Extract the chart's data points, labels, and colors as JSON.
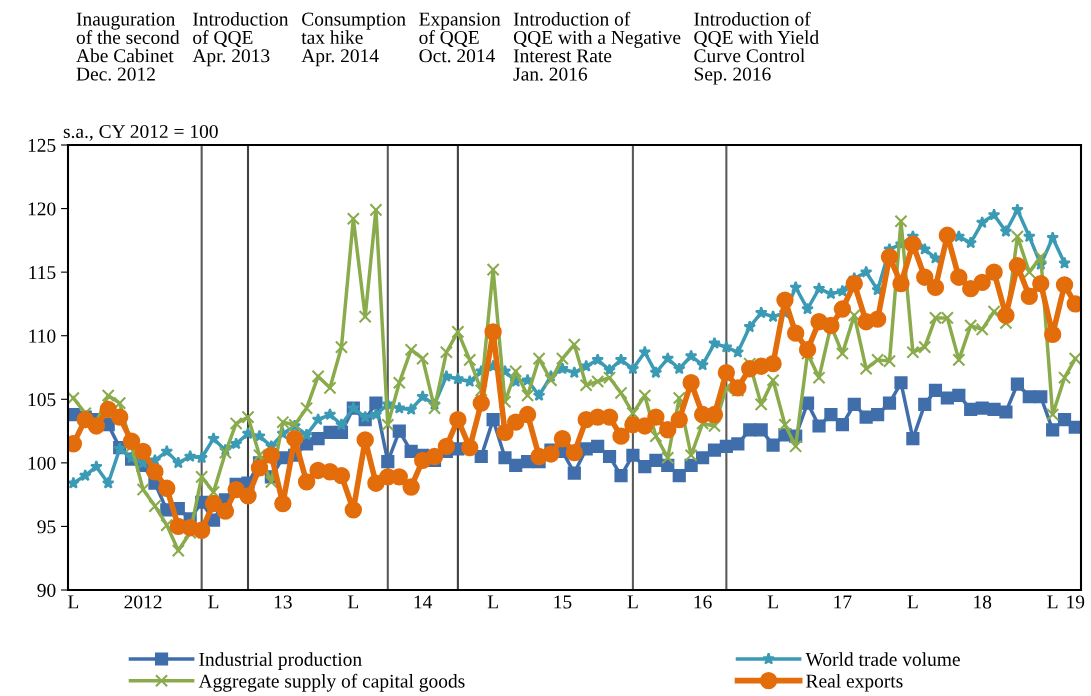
{
  "chart_data": {
    "type": "line",
    "ylabel": "s.a., CY 2012 = 100",
    "annotations": [
      "Inauguration\nof the second\nAbe Cabinet\nDec. 2012",
      "Introduction\nof QQE\nApr. 2013",
      "Consumption\ntax hike\nApr. 2014",
      "Expansion\nof QQE\nOct. 2014",
      "Introduction of\nQQE with a Negative\nInterest Rate\nJan. 2016",
      "Introduction of\nQQE with Yield\nCurve Control\nSep. 2016"
    ],
    "x": [
      "2012-01",
      "2012-02",
      "2012-03",
      "2012-04",
      "2012-05",
      "2012-06",
      "2012-07",
      "2012-08",
      "2012-09",
      "2012-10",
      "2012-11",
      "2012-12",
      "2013-01",
      "2013-02",
      "2013-03",
      "2013-04",
      "2013-05",
      "2013-06",
      "2013-07",
      "2013-08",
      "2013-09",
      "2013-10",
      "2013-11",
      "2013-12",
      "2014-01",
      "2014-02",
      "2014-03",
      "2014-04",
      "2014-05",
      "2014-06",
      "2014-07",
      "2014-08",
      "2014-09",
      "2014-10",
      "2014-11",
      "2014-12",
      "2015-01",
      "2015-02",
      "2015-03",
      "2015-04",
      "2015-05",
      "2015-06",
      "2015-07",
      "2015-08",
      "2015-09",
      "2015-10",
      "2015-11",
      "2015-12",
      "2016-01",
      "2016-02",
      "2016-03",
      "2016-04",
      "2016-05",
      "2016-06",
      "2016-07",
      "2016-08",
      "2016-09",
      "2016-10",
      "2016-11",
      "2016-12",
      "2017-01",
      "2017-02",
      "2017-03",
      "2017-04",
      "2017-05",
      "2017-06",
      "2017-07",
      "2017-08",
      "2017-09",
      "2017-10",
      "2017-11",
      "2017-12",
      "2018-01",
      "2018-02",
      "2018-03",
      "2018-04",
      "2018-05",
      "2018-06",
      "2018-07",
      "2018-08",
      "2018-09",
      "2018-10",
      "2018-11",
      "2018-12",
      "2019-01",
      "2019-02",
      "2019-03"
    ],
    "series": [
      {
        "name": "Industrial production",
        "color": "#3f6eab",
        "marker": "square",
        "values": [
          103.8,
          103.6,
          103.4,
          103.0,
          101.2,
          100.3,
          99.8,
          98.4,
          96.3,
          96.4,
          95.6,
          96.9,
          95.5,
          97.1,
          98.3,
          98.4,
          100.0,
          98.9,
          100.4,
          100.6,
          101.5,
          101.9,
          102.4,
          102.4,
          104.3,
          103.4,
          104.7,
          100.1,
          102.5,
          100.9,
          100.6,
          100.2,
          100.9,
          101.1,
          null,
          100.5,
          103.4,
          100.4,
          99.8,
          100.1,
          100.1,
          101.0,
          100.9,
          99.2,
          101.1,
          101.3,
          100.5,
          99.0,
          100.6,
          99.7,
          100.2,
          99.8,
          99.0,
          99.8,
          100.4,
          101.0,
          101.3,
          101.5,
          102.6,
          102.6,
          101.4,
          102.2,
          102.1,
          104.7,
          102.9,
          103.8,
          103.0,
          104.6,
          103.6,
          103.8,
          104.7,
          106.3,
          101.9,
          104.6,
          105.7,
          105.1,
          105.3,
          104.2,
          104.3,
          104.2,
          104.0,
          106.2,
          105.2,
          105.2,
          102.6,
          103.4,
          102.8
        ]
      },
      {
        "name": "World trade volume",
        "color": "#3b9ab4",
        "marker": "star",
        "values": [
          98.4,
          99.0,
          99.7,
          98.4,
          101.1,
          100.4,
          100.0,
          100.2,
          100.9,
          100.0,
          100.5,
          100.4,
          101.9,
          101.0,
          101.5,
          102.3,
          102.1,
          101.3,
          102.3,
          102.9,
          102.2,
          103.4,
          103.8,
          103.0,
          104.3,
          103.6,
          103.8,
          104.6,
          104.3,
          104.2,
          105.2,
          104.6,
          106.8,
          106.6,
          106.4,
          107.2,
          107.6,
          107.2,
          106.4,
          106.5,
          105.3,
          106.8,
          107.4,
          107.1,
          107.6,
          108.1,
          107.3,
          108.1,
          107.4,
          108.7,
          107.1,
          108.2,
          107.4,
          108.4,
          107.7,
          109.4,
          109.1,
          108.7,
          110.7,
          111.8,
          111.5,
          111.8,
          113.8,
          112.1,
          113.7,
          113.3,
          113.5,
          114.5,
          115.0,
          113.6,
          116.8,
          117.2,
          117.8,
          116.8,
          116.1,
          null,
          117.8,
          117.3,
          118.9,
          119.5,
          118.2,
          119.9,
          117.8,
          115.6,
          117.7,
          115.7,
          null
        ]
      },
      {
        "name": "Aggregate supply of capital goods",
        "color": "#8aab4c",
        "marker": "cross",
        "values": [
          105.1,
          103.9,
          103.2,
          105.3,
          104.7,
          101.3,
          97.9,
          96.6,
          95.1,
          93.1,
          94.5,
          98.9,
          97.7,
          100.8,
          103.1,
          103.6,
          100.6,
          98.5,
          103.2,
          103.0,
          104.3,
          106.8,
          105.9,
          109.1,
          119.2,
          111.5,
          119.9,
          103.0,
          106.3,
          108.9,
          108.2,
          104.3,
          108.7,
          110.3,
          108.1,
          105.7,
          115.2,
          104.8,
          107.2,
          105.3,
          108.2,
          106.5,
          108.2,
          109.3,
          106.1,
          106.4,
          106.7,
          105.5,
          103.9,
          105.3,
          102.1,
          100.4,
          105.1,
          100.6,
          103.1,
          102.9,
          105.9,
          105.7,
          107.8,
          104.6,
          106.5,
          103.0,
          101.3,
          108.6,
          106.7,
          110.8,
          108.6,
          111.6,
          107.4,
          108.1,
          108.0,
          119.0,
          108.7,
          109.1,
          111.4,
          111.4,
          108.1,
          110.8,
          110.5,
          111.9,
          111.0,
          117.8,
          115.0,
          116.2,
          103.8,
          106.7,
          108.2
        ]
      },
      {
        "name": "Real exports",
        "color": "#e36c0b",
        "marker": "circle",
        "values": [
          101.5,
          103.4,
          102.9,
          104.2,
          103.6,
          101.7,
          100.9,
          99.3,
          98.0,
          95.0,
          94.9,
          94.7,
          96.8,
          96.2,
          97.9,
          97.4,
          99.6,
          100.6,
          96.8,
          101.9,
          98.5,
          99.4,
          99.3,
          99.0,
          96.3,
          101.8,
          98.4,
          98.9,
          98.9,
          98.1,
          100.2,
          100.5,
          101.3,
          103.4,
          101.2,
          104.7,
          110.3,
          102.4,
          103.2,
          103.8,
          100.5,
          100.7,
          101.9,
          100.8,
          103.4,
          103.6,
          103.6,
          102.1,
          103.0,
          102.9,
          103.6,
          102.6,
          103.4,
          106.3,
          103.8,
          103.8,
          107.1,
          105.9,
          107.4,
          107.6,
          107.8,
          112.8,
          110.2,
          108.9,
          111.1,
          110.8,
          112.1,
          114.1,
          111.1,
          111.3,
          116.2,
          114.1,
          117.2,
          114.6,
          113.8,
          117.9,
          114.6,
          113.7,
          114.2,
          115.0,
          111.6,
          115.5,
          113.1,
          114.1,
          110.1,
          114.0,
          112.5
        ]
      }
    ],
    "ref_lines": [
      {
        "axis": "x",
        "value": "2012-12",
        "color": "#595959"
      },
      {
        "axis": "x",
        "value": "2013-04",
        "color": "#404040"
      },
      {
        "axis": "x",
        "value": "2014-04",
        "color": "#595959"
      },
      {
        "axis": "x",
        "value": "2014-10",
        "color": "#404040"
      },
      {
        "axis": "x",
        "value": "2016-01",
        "color": "#595959"
      },
      {
        "axis": "x",
        "value": "2016-09",
        "color": "#595959"
      }
    ],
    "xlim": [
      "2011-12-18",
      "2019-03-16"
    ],
    "xticks": [
      {
        "value": "2012-01",
        "label": "L"
      },
      {
        "value": "2012-07",
        "label": "2012"
      },
      {
        "value": "2013-01",
        "label": "L"
      },
      {
        "value": "2013-07",
        "label": "13"
      },
      {
        "value": "2014-01",
        "label": "L"
      },
      {
        "value": "2014-07",
        "label": "14"
      },
      {
        "value": "2015-01",
        "label": "L"
      },
      {
        "value": "2015-07",
        "label": "15"
      },
      {
        "value": "2016-01",
        "label": "L"
      },
      {
        "value": "2016-07",
        "label": "16"
      },
      {
        "value": "2017-01",
        "label": "L"
      },
      {
        "value": "2017-07",
        "label": "17"
      },
      {
        "value": "2018-01",
        "label": "L"
      },
      {
        "value": "2018-07",
        "label": "18"
      },
      {
        "value": "2019-01",
        "label": "L"
      },
      {
        "value": "2019-03",
        "label": "19"
      }
    ],
    "ylim": [
      90,
      125
    ],
    "yticks": [
      90,
      95,
      100,
      105,
      110,
      115,
      120,
      125
    ],
    "grid": false,
    "legend": "bottom",
    "line_style": "solid"
  }
}
